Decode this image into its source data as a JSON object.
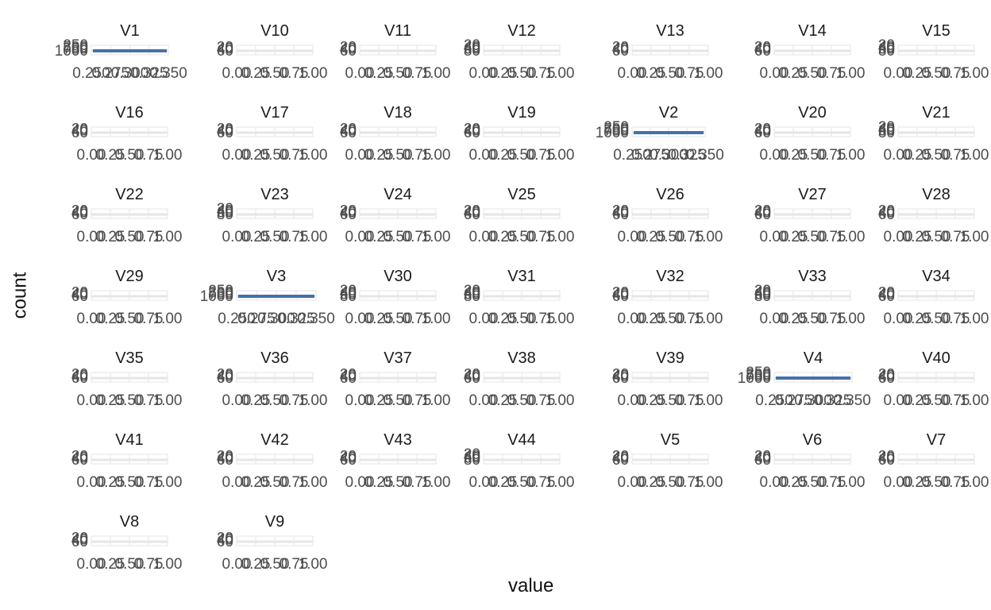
{
  "chart_data": {
    "type": "bar",
    "xlabel": "value",
    "ylabel": "count",
    "grid": true,
    "accent_color": "#4472a8",
    "panel_bg_color": "#e6e6e6",
    "wide_panels": {
      "names": [
        "V1",
        "V2",
        "V3",
        "V4"
      ],
      "yticks": [
        "1000",
        "750",
        "500",
        "250"
      ],
      "xticks": [
        "0.250",
        "0.275",
        "0.300",
        "0.325",
        "0.350"
      ],
      "xlim": [
        0.25,
        0.35
      ]
    },
    "narrow_panels": {
      "xticks": [
        "0.00",
        "0.25",
        "0.50",
        "0.75",
        "1.00"
      ],
      "xlim": [
        0,
        1
      ]
    },
    "panels": [
      {
        "name": "V1",
        "yticks": [
          "1000",
          "750",
          "500",
          "250"
        ]
      },
      {
        "name": "V10",
        "yticks": [
          "60",
          "40",
          "20"
        ]
      },
      {
        "name": "V11",
        "yticks": [
          "60",
          "40",
          "20"
        ]
      },
      {
        "name": "V12",
        "yticks": [
          "80",
          "60",
          "40",
          "20"
        ]
      },
      {
        "name": "V13",
        "yticks": [
          "60",
          "40",
          "20"
        ]
      },
      {
        "name": "V14",
        "yticks": [
          "60",
          "40",
          "20"
        ]
      },
      {
        "name": "V15",
        "yticks": [
          "80",
          "60",
          "40",
          "20"
        ]
      },
      {
        "name": "V16",
        "yticks": [
          "60",
          "40",
          "20"
        ]
      },
      {
        "name": "V17",
        "yticks": [
          "60",
          "40",
          "20"
        ]
      },
      {
        "name": "V18",
        "yticks": [
          "60",
          "40",
          "20"
        ]
      },
      {
        "name": "V19",
        "yticks": [
          "60",
          "40",
          "20"
        ]
      },
      {
        "name": "V2",
        "yticks": [
          "1000",
          "750",
          "500",
          "250"
        ]
      },
      {
        "name": "V20",
        "yticks": [
          "60",
          "40",
          "20"
        ]
      },
      {
        "name": "V21",
        "yticks": [
          "80",
          "60",
          "40",
          "20"
        ]
      },
      {
        "name": "V22",
        "yticks": [
          "60",
          "40",
          "20"
        ]
      },
      {
        "name": "V23",
        "yticks": [
          "80",
          "60",
          "40",
          "20"
        ]
      },
      {
        "name": "V24",
        "yticks": [
          "60",
          "40",
          "20"
        ]
      },
      {
        "name": "V25",
        "yticks": [
          "60",
          "40",
          "20"
        ]
      },
      {
        "name": "V26",
        "yticks": [
          "60",
          "40",
          "20"
        ]
      },
      {
        "name": "V27",
        "yticks": [
          "60",
          "40",
          "20"
        ]
      },
      {
        "name": "V28",
        "yticks": [
          "60",
          "40",
          "20"
        ]
      },
      {
        "name": "V29",
        "yticks": [
          "60",
          "40",
          "20"
        ]
      },
      {
        "name": "V3",
        "yticks": [
          "1000",
          "750",
          "500",
          "250"
        ]
      },
      {
        "name": "V30",
        "yticks": [
          "80",
          "60",
          "40",
          "20"
        ]
      },
      {
        "name": "V31",
        "yticks": [
          "80",
          "60",
          "40",
          "20"
        ]
      },
      {
        "name": "V32",
        "yticks": [
          "60",
          "40",
          "20"
        ]
      },
      {
        "name": "V33",
        "yticks": [
          "80",
          "60",
          "40",
          "20"
        ]
      },
      {
        "name": "V34",
        "yticks": [
          "60",
          "40",
          "20"
        ]
      },
      {
        "name": "V35",
        "yticks": [
          "60",
          "40",
          "20"
        ]
      },
      {
        "name": "V36",
        "yticks": [
          "60",
          "40",
          "20"
        ]
      },
      {
        "name": "V37",
        "yticks": [
          "60",
          "40",
          "20"
        ]
      },
      {
        "name": "V38",
        "yticks": [
          "60",
          "40",
          "20"
        ]
      },
      {
        "name": "V39",
        "yticks": [
          "60",
          "40",
          "20"
        ]
      },
      {
        "name": "V4",
        "yticks": [
          "1000",
          "750",
          "500",
          "250"
        ]
      },
      {
        "name": "V40",
        "yticks": [
          "60",
          "40",
          "20"
        ]
      },
      {
        "name": "V41",
        "yticks": [
          "60",
          "40",
          "20"
        ]
      },
      {
        "name": "V42",
        "yticks": [
          "60",
          "40",
          "20"
        ]
      },
      {
        "name": "V43",
        "yticks": [
          "60",
          "40",
          "20"
        ]
      },
      {
        "name": "V44",
        "yticks": [
          "80",
          "60",
          "40",
          "20"
        ]
      },
      {
        "name": "V5",
        "yticks": [
          "60",
          "40",
          "20"
        ]
      },
      {
        "name": "V6",
        "yticks": [
          "60",
          "40",
          "20"
        ]
      },
      {
        "name": "V7",
        "yticks": [
          "60",
          "40",
          "20"
        ]
      },
      {
        "name": "V8",
        "yticks": [
          "60",
          "40",
          "20"
        ]
      },
      {
        "name": "V9",
        "yticks": [
          "60",
          "40",
          "20"
        ]
      }
    ]
  }
}
